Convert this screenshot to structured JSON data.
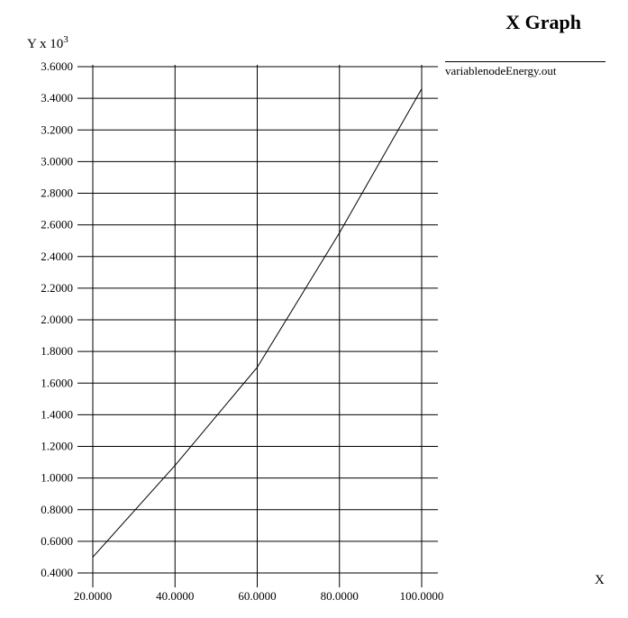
{
  "title": "X Graph",
  "legend_label": "variablenodeEnergy.out",
  "chart_data": {
    "type": "line",
    "title": "X Graph",
    "ylabel": "Y x 10",
    "ylabel_exponent": "3",
    "xlabel": "X",
    "xlim": [
      20,
      100
    ],
    "ylim": [
      0.4,
      3.6
    ],
    "x_ticks": [
      "20.0000",
      "40.0000",
      "60.0000",
      "80.0000",
      "100.0000"
    ],
    "y_ticks": [
      "0.4000",
      "0.6000",
      "0.8000",
      "1.0000",
      "1.2000",
      "1.4000",
      "1.6000",
      "1.8000",
      "2.0000",
      "2.2000",
      "2.4000",
      "2.6000",
      "2.8000",
      "3.0000",
      "3.2000",
      "3.4000",
      "3.6000"
    ],
    "grid": true,
    "legend_position": "top-right",
    "series": [
      {
        "name": "variablenodeEnergy.out",
        "x": [
          20,
          40,
          60,
          80,
          100
        ],
        "y": [
          0.5,
          1.08,
          1.7,
          2.55,
          3.46
        ]
      }
    ]
  }
}
